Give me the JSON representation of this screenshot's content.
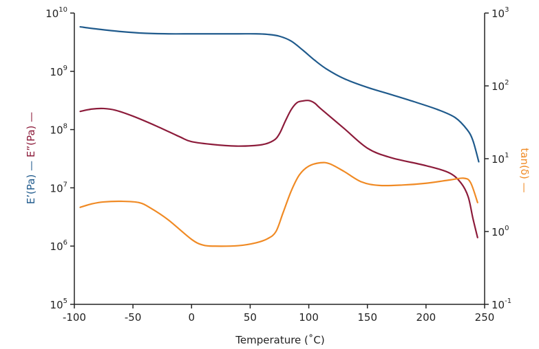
{
  "chart_data": {
    "type": "line",
    "xlabel": "Temperature (˚C)",
    "xlim": [
      -100,
      250
    ],
    "x_ticks": [
      "-100",
      "-50",
      "0",
      "50",
      "100",
      "150",
      "200",
      "250"
    ],
    "y_left": {
      "scale": "log",
      "lim": [
        100000,
        10000000000
      ],
      "tick_bases": [
        "10",
        "10",
        "10",
        "10",
        "10",
        "10"
      ],
      "tick_exponents": [
        "5",
        "6",
        "7",
        "8",
        "9",
        "10"
      ],
      "label_parts": [
        {
          "text": "E’(Pa)",
          "color": "#1f5a8c"
        },
        {
          "text": " — ",
          "color": "#1f5a8c"
        },
        {
          "text": "E”(Pa)",
          "color": "#8c1b3a"
        },
        {
          "text": " —",
          "color": "#8c1b3a"
        }
      ]
    },
    "y_right": {
      "scale": "log",
      "lim": [
        0.1,
        1000
      ],
      "tick_bases": [
        "10",
        "10",
        "10",
        "10",
        "10"
      ],
      "tick_exponents": [
        "-1",
        "0",
        "1",
        "2",
        "3"
      ],
      "label_parts": [
        {
          "text": "tan(δ)",
          "color": "#f08a24"
        },
        {
          "text": "  —",
          "color": "#f08a24"
        }
      ]
    },
    "grid": false,
    "series": [
      {
        "key": "storage",
        "axis": "left",
        "color": "#1f5a8c",
        "x": [
          -95,
          -80,
          -60,
          -40,
          -20,
          0,
          20,
          40,
          55,
          65,
          75,
          85,
          95,
          105,
          115,
          130,
          150,
          170,
          190,
          210,
          225,
          235,
          240,
          245
        ],
        "y": [
          5800000000.0,
          5300000000.0,
          4800000000.0,
          4500000000.0,
          4400000000.0,
          4400000000.0,
          4400000000.0,
          4400000000.0,
          4400000000.0,
          4300000000.0,
          4000000000.0,
          3300000000.0,
          2300000000.0,
          1550000000.0,
          1100000000.0,
          750000000.0,
          530000000.0,
          400000000.0,
          300000000.0,
          220000000.0,
          160000000.0,
          100000000.0,
          65000000.0,
          28000000.0
        ]
      },
      {
        "key": "loss",
        "axis": "left",
        "color": "#8c1b3a",
        "x": [
          -95,
          -85,
          -75,
          -65,
          -50,
          -30,
          -10,
          0,
          20,
          40,
          60,
          70,
          75,
          80,
          85,
          90,
          95,
          100,
          105,
          110,
          130,
          150,
          170,
          200,
          220,
          230,
          236,
          240,
          244
        ],
        "y": [
          205000000.0,
          225000000.0,
          230000000.0,
          215000000.0,
          170000000.0,
          115000000.0,
          75000000.0,
          62000000.0,
          55000000.0,
          52000000.0,
          55000000.0,
          65000000.0,
          85000000.0,
          140000000.0,
          220000000.0,
          290000000.0,
          310000000.0,
          315000000.0,
          285000000.0,
          230000000.0,
          105000000.0,
          48000000.0,
          33000000.0,
          24000000.0,
          18000000.0,
          12000000.0,
          7000000.0,
          3000000.0,
          1400000.0
        ]
      },
      {
        "key": "tan_delta",
        "axis": "right",
        "color": "#f08a24",
        "x": [
          -95,
          -85,
          -75,
          -60,
          -45,
          -35,
          -20,
          0,
          10,
          20,
          40,
          55,
          65,
          72,
          78,
          85,
          92,
          100,
          110,
          118,
          130,
          145,
          160,
          180,
          200,
          220,
          232,
          238,
          244
        ],
        "y": [
          2.15,
          2.4,
          2.55,
          2.6,
          2.5,
          2.1,
          1.45,
          0.78,
          0.65,
          0.63,
          0.64,
          0.7,
          0.8,
          1.0,
          1.8,
          3.6,
          6.0,
          7.9,
          8.8,
          8.5,
          6.7,
          4.8,
          4.3,
          4.35,
          4.6,
          5.1,
          5.4,
          4.7,
          2.5
        ]
      }
    ]
  }
}
